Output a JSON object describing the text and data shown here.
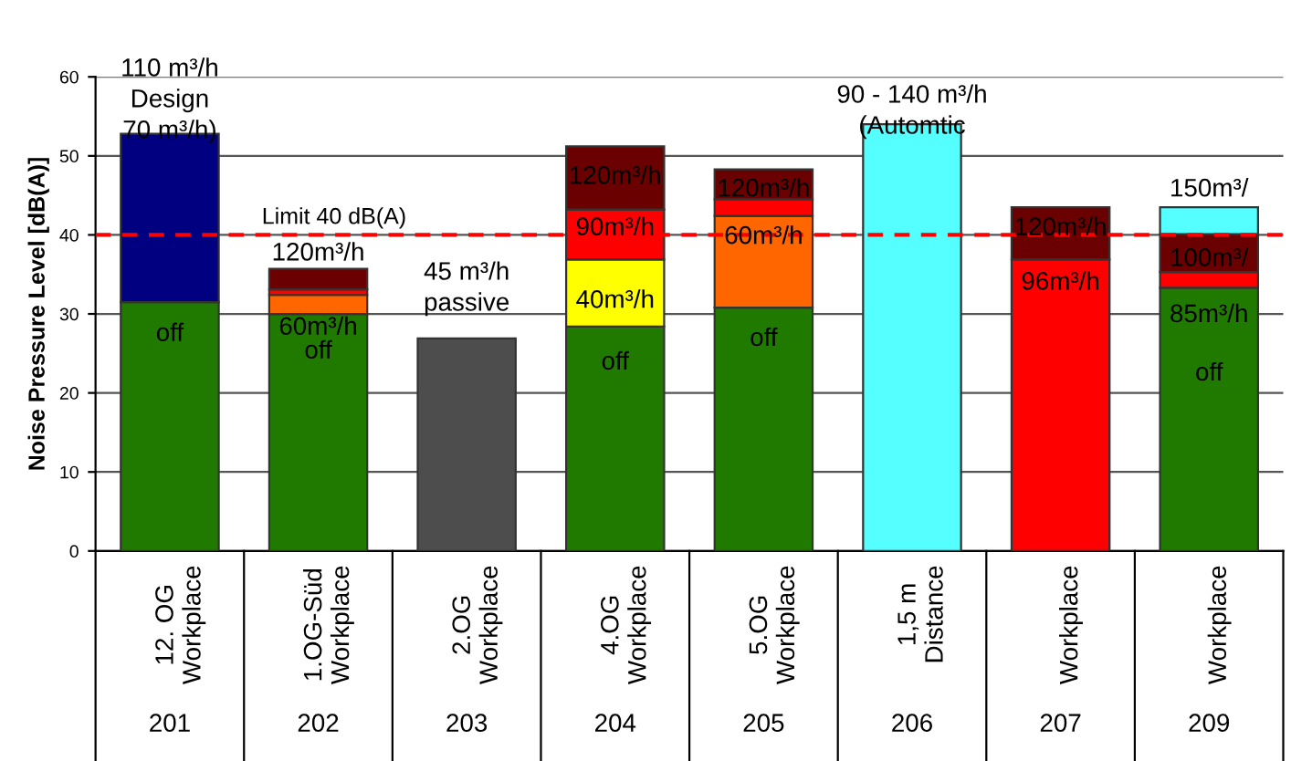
{
  "chart_data": {
    "type": "bar",
    "stacked": true,
    "ylabel": "Noise Pressure Level [dB(A)]",
    "categories": [
      "201",
      "202",
      "203",
      "204",
      "205",
      "206",
      "207",
      "209"
    ],
    "series": [
      {
        "color": "#217a00",
        "values": [
          31.5,
          30,
          null,
          28.4,
          30.8,
          null,
          null,
          33.3
        ]
      },
      {
        "color": "#ff6600",
        "values": [
          null,
          2.4,
          null,
          null,
          11.6,
          null,
          null,
          null
        ]
      },
      {
        "color": "#ffff00",
        "values": [
          null,
          null,
          null,
          8.5,
          null,
          null,
          null,
          null
        ]
      },
      {
        "color": "#ff0000",
        "values": [
          null,
          0.7,
          null,
          6.3,
          2.1,
          null,
          36.9,
          2.0
        ]
      },
      {
        "color": "#6b0000",
        "values": [
          null,
          2.6,
          null,
          8.0,
          3.8,
          null,
          6.6,
          4.8
        ]
      },
      {
        "color": "#000080",
        "values": [
          21.3,
          null,
          null,
          null,
          null,
          null,
          null,
          null
        ]
      },
      {
        "color": "#4d4d4d",
        "values": [
          null,
          null,
          26.9,
          null,
          null,
          null,
          null,
          null
        ]
      },
      {
        "color": "#55ffff",
        "values": [
          null,
          null,
          null,
          null,
          null,
          54.0,
          null,
          3.4
        ]
      }
    ],
    "ylim": [
      0,
      60
    ],
    "yticks": [
      0,
      10,
      20,
      30,
      40,
      50,
      60
    ],
    "grid": "y",
    "ref_lines": [
      {
        "axis": "y",
        "value": 40,
        "label": "Limit 40 dB(A)",
        "color": "#ff0000",
        "line_style": "dashed"
      }
    ],
    "annotations": [
      "12. OG\nWorkplace",
      "1.OG-Süd\nWorkplace",
      "2.OG\nWorkplace",
      "4.OG\nWorkplace",
      "5.OG\nWorkplace",
      "1,5 m\nDistance",
      "Workplace",
      "Workplace",
      "110 m³/h\nDesign\n70 m³/h)",
      "off",
      "120m³/h",
      "60m³/h",
      "off",
      "45 m³/h\npassive",
      "120m³/h",
      "90m³/h",
      "40m³/h",
      "off",
      "120m³/h",
      "60m³/h",
      "off",
      "90 - 140 m³/h\n(Automtic",
      "120m³/h",
      "96m³/h",
      "150m³/",
      "100m³/",
      "85m³/h",
      "off"
    ]
  }
}
